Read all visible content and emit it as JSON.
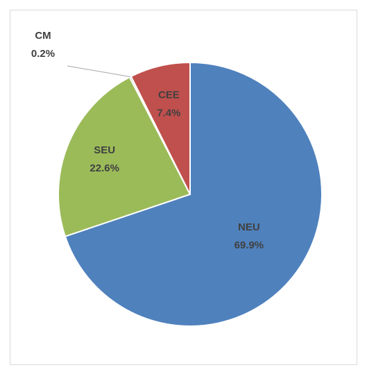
{
  "chart_data": {
    "type": "pie",
    "categories": [
      "NEU",
      "SEU",
      "CM",
      "CEE"
    ],
    "values": [
      69.9,
      22.6,
      0.2,
      7.4
    ],
    "value_labels": [
      "69.9%",
      "22.6%",
      "0.2%",
      "7.4%"
    ],
    "colors": [
      "#4f81bd",
      "#9bbb59",
      "#8064a2",
      "#c0504d"
    ]
  }
}
